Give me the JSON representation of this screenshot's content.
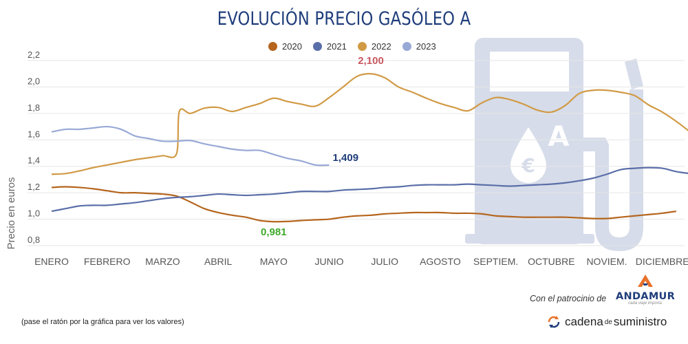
{
  "title": "EVOLUCIÓN PRECIO GASÓLEO A",
  "legend": [
    {
      "label": "2020",
      "color": "#b5651d"
    },
    {
      "label": "2021",
      "color": "#5a6ea8"
    },
    {
      "label": "2022",
      "color": "#d19a45"
    },
    {
      "label": "2023",
      "color": "#98a9d6"
    }
  ],
  "sponsor_text": "Con el patrocinio de",
  "brand": {
    "name": "ANDAMUR",
    "tagline": "cada viaje importa"
  },
  "cadena": {
    "part1": "cadena",
    "part2": "de",
    "part3": "suministro"
  },
  "footnote": "(pase el ratón por la gráfica para ver los valores)",
  "colors": {
    "title": "#1f3d7a",
    "watermark": "#d6dce9",
    "grid": "#e6e6e6"
  },
  "icons": {
    "background": "fuel-pump-euro-icon",
    "brand_logo": "andamur-logo-icon",
    "cadena_logo": "cadena-arrows-icon"
  },
  "chart_data": {
    "type": "line",
    "title": "EVOLUCIÓN PRECIO GASÓLEO A",
    "xlabel": "",
    "ylabel": "Precio en euros",
    "ylim": [
      0.8,
      2.2
    ],
    "yticks": [
      "0,8",
      "1,0",
      "1,2",
      "1,4",
      "1,6",
      "1,8",
      "2,0",
      "2,2"
    ],
    "categories": [
      "ENERO",
      "FEBRERO",
      "MARZO",
      "ABRIL",
      "MAYO",
      "JUNIO",
      "JULIO",
      "AGOSTO",
      "SEPTIEM.",
      "OCTUBRE",
      "NOVIEM.",
      "DICIEMBRE"
    ],
    "grid": true,
    "legend_position": "top-center",
    "series": [
      {
        "name": "2020",
        "color": "#b5651d",
        "x": [
          0,
          0.25,
          0.5,
          0.75,
          1,
          1.25,
          1.5,
          1.75,
          2,
          2.25,
          2.5,
          2.75,
          3,
          3.25,
          3.5,
          3.75,
          4,
          4.25,
          4.5,
          4.75,
          5,
          5.25,
          5.5,
          5.75,
          6,
          6.25,
          6.5,
          6.75,
          7,
          7.25,
          7.5,
          7.75,
          8,
          8.25,
          8.5,
          8.75,
          9,
          9.25,
          9.5,
          9.75,
          10,
          10.25,
          10.5,
          10.75,
          11,
          11.25
        ],
        "values": [
          1.24,
          1.245,
          1.24,
          1.23,
          1.215,
          1.2,
          1.2,
          1.195,
          1.19,
          1.175,
          1.13,
          1.08,
          1.05,
          1.03,
          1.015,
          0.99,
          0.981,
          0.983,
          0.99,
          0.995,
          1.0,
          1.015,
          1.025,
          1.03,
          1.04,
          1.045,
          1.05,
          1.05,
          1.05,
          1.045,
          1.045,
          1.04,
          1.025,
          1.02,
          1.015,
          1.015,
          1.015,
          1.015,
          1.01,
          1.005,
          1.005,
          1.015,
          1.025,
          1.035,
          1.045,
          1.06
        ]
      },
      {
        "name": "2021",
        "color": "#5a6ea8",
        "x": [
          0,
          0.25,
          0.5,
          0.75,
          1,
          1.25,
          1.5,
          1.75,
          2,
          2.25,
          2.5,
          2.75,
          3,
          3.25,
          3.5,
          3.75,
          4,
          4.25,
          4.5,
          4.75,
          5,
          5.25,
          5.5,
          5.75,
          6,
          6.25,
          6.5,
          6.75,
          7,
          7.25,
          7.5,
          7.75,
          8,
          8.25,
          8.5,
          8.75,
          9,
          9.25,
          9.5,
          9.75,
          10,
          10.25,
          10.5,
          10.75,
          11,
          11.25,
          11.5
        ],
        "values": [
          1.06,
          1.08,
          1.1,
          1.105,
          1.105,
          1.115,
          1.125,
          1.14,
          1.155,
          1.165,
          1.17,
          1.18,
          1.19,
          1.185,
          1.18,
          1.185,
          1.19,
          1.2,
          1.21,
          1.21,
          1.21,
          1.22,
          1.225,
          1.23,
          1.24,
          1.245,
          1.255,
          1.26,
          1.26,
          1.26,
          1.265,
          1.26,
          1.255,
          1.25,
          1.255,
          1.26,
          1.265,
          1.275,
          1.29,
          1.31,
          1.34,
          1.375,
          1.385,
          1.39,
          1.385,
          1.36,
          1.345
        ]
      },
      {
        "name": "2022",
        "color": "#d19a45",
        "x": [
          0,
          0.25,
          0.5,
          0.75,
          1,
          1.25,
          1.5,
          1.75,
          2,
          2.25,
          2.3,
          2.5,
          2.75,
          3,
          3.25,
          3.5,
          3.75,
          4,
          4.25,
          4.5,
          4.75,
          5,
          5.25,
          5.5,
          5.75,
          6,
          6.25,
          6.5,
          6.75,
          7,
          7.25,
          7.5,
          7.75,
          8,
          8.25,
          8.5,
          8.75,
          9,
          9.25,
          9.5,
          9.75,
          10,
          10.25,
          10.5,
          10.75,
          11,
          11.25,
          11.5
        ],
        "values": [
          1.34,
          1.345,
          1.365,
          1.39,
          1.41,
          1.43,
          1.45,
          1.465,
          1.48,
          1.495,
          1.815,
          1.8,
          1.84,
          1.845,
          1.815,
          1.845,
          1.875,
          1.915,
          1.89,
          1.87,
          1.855,
          1.92,
          2.0,
          2.08,
          2.1,
          2.07,
          2.0,
          1.96,
          1.915,
          1.875,
          1.845,
          1.82,
          1.88,
          1.92,
          1.905,
          1.87,
          1.825,
          1.81,
          1.86,
          1.95,
          1.975,
          1.975,
          1.96,
          1.935,
          1.865,
          1.81,
          1.74,
          1.66
        ]
      },
      {
        "name": "2023",
        "color": "#98a9d6",
        "x": [
          0,
          0.25,
          0.5,
          0.75,
          1,
          1.25,
          1.5,
          1.75,
          2,
          2.25,
          2.5,
          2.75,
          3,
          3.25,
          3.5,
          3.75,
          4,
          4.25,
          4.5,
          4.75,
          5
        ],
        "values": [
          1.66,
          1.68,
          1.68,
          1.69,
          1.7,
          1.68,
          1.63,
          1.61,
          1.59,
          1.59,
          1.595,
          1.57,
          1.55,
          1.53,
          1.52,
          1.52,
          1.49,
          1.46,
          1.44,
          1.41,
          1.409
        ]
      }
    ],
    "annotations": [
      {
        "text": "2,100",
        "series": "2022",
        "x": 5.75,
        "y": 2.1,
        "color": "#c8585f"
      },
      {
        "text": "1,409",
        "series": "2023",
        "x": 5.0,
        "y": 1.409,
        "color": "#1f3d7a"
      },
      {
        "text": "0,981",
        "series": "2020",
        "x": 4.0,
        "y": 0.981,
        "color": "#3ea82a"
      }
    ]
  }
}
